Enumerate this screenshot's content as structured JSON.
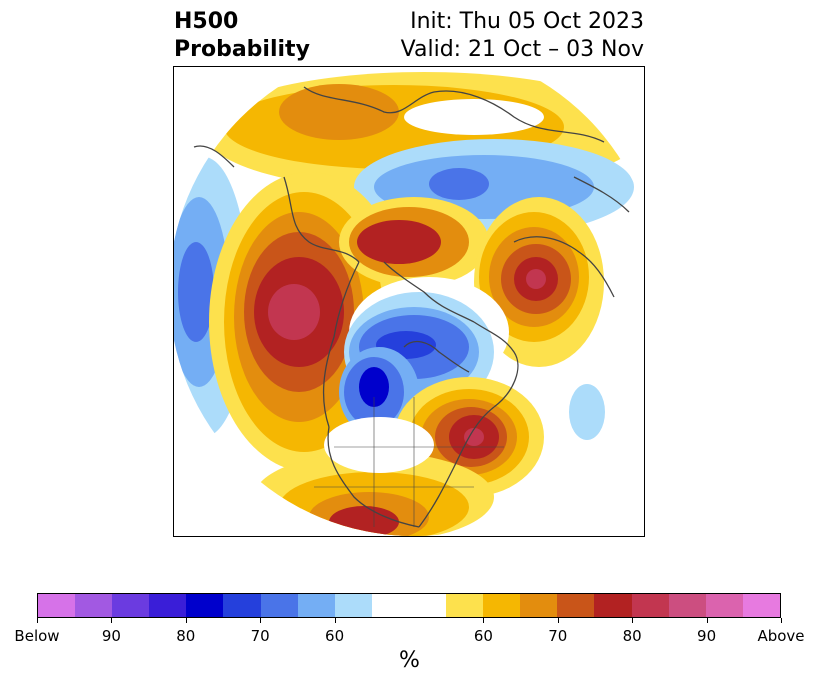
{
  "title": {
    "left_line1": "H500",
    "left_line2": "Probability",
    "right_line1": "Init: Thu 05 Oct 2023",
    "right_line2": "Valid: 21 Oct – 03 Nov"
  },
  "colorbar": {
    "unit": "%",
    "colors": [
      "#d672e8",
      "#a259e2",
      "#6b3be0",
      "#3a1ed8",
      "#0000cc",
      "#2540dc",
      "#4a74e8",
      "#74aef4",
      "#acdcfa",
      "#ffffff",
      "#ffffff",
      "#fde14d",
      "#f5b702",
      "#e38d0e",
      "#c95519",
      "#b22222",
      "#c23650",
      "#cc4e80",
      "#db63ae",
      "#e77ae0"
    ],
    "tick_labels": [
      "Below",
      "90",
      "80",
      "70",
      "60",
      "60",
      "70",
      "80",
      "90",
      "Above"
    ]
  },
  "map": {
    "projection": "polar-stereographic",
    "contour_colors": {
      "below_60": "#acdcfa",
      "below_70": "#74aef4",
      "below_80": "#4a74e8",
      "below_90": "#2540dc",
      "below_95": "#0000cc",
      "above_60": "#fde14d",
      "above_65": "#f5b702",
      "above_70": "#e38d0e",
      "above_75": "#c95519",
      "above_80": "#b22222",
      "above_85": "#c23650",
      "coastline": "#444444"
    }
  }
}
